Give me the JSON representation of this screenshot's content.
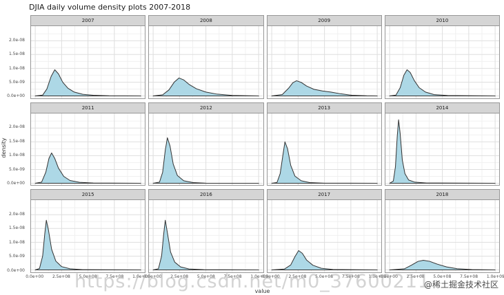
{
  "watermark": {
    "url_text": "https://blog.csdn.net/m0_37600211",
    "badge": "@稀土掘金技术社区"
  },
  "chart_data": {
    "type": "area",
    "title": "DJIA daily volume density plots 2007-2018",
    "xlabel": "value",
    "ylabel": "density",
    "legend": "none",
    "grid": "on",
    "fill_color": "#add8e6",
    "line_color": "#333333",
    "strip_color": "#d5d5d5",
    "x_unit": 100000000.0,
    "y_unit": 1e-09,
    "xlim": [
      -0.4,
      10.4
    ],
    "ylim": [
      0,
      24.5
    ],
    "x_ticks": [
      {
        "value": 0,
        "label": "0.0e+00"
      },
      {
        "value": 2.5,
        "label": "2.5e+08"
      },
      {
        "value": 5,
        "label": "5.0e+08"
      },
      {
        "value": 7.5,
        "label": "7.5e+08"
      },
      {
        "value": 10,
        "label": "1.0e+09"
      }
    ],
    "y_ticks": [
      {
        "value": 0,
        "label": "0.0e+00"
      },
      {
        "value": 5,
        "label": "5.0e-09"
      },
      {
        "value": 10,
        "label": "1.0e-08"
      },
      {
        "value": 15,
        "label": "1.5e-08"
      },
      {
        "value": 20,
        "label": "2.0e-08"
      }
    ],
    "facets": [
      {
        "year": "2007",
        "points": [
          [
            0,
            0
          ],
          [
            0.7,
            0.3
          ],
          [
            1.1,
            2.5
          ],
          [
            1.5,
            7
          ],
          [
            1.85,
            9.5
          ],
          [
            2.2,
            8
          ],
          [
            2.6,
            5
          ],
          [
            3.1,
            2.8
          ],
          [
            3.7,
            1.4
          ],
          [
            4.5,
            0.6
          ],
          [
            5.5,
            0.25
          ],
          [
            7,
            0.05
          ],
          [
            10,
            0
          ]
        ]
      },
      {
        "year": "2008",
        "points": [
          [
            0,
            0
          ],
          [
            0.9,
            0.4
          ],
          [
            1.5,
            2.2
          ],
          [
            2.0,
            5
          ],
          [
            2.45,
            6.5
          ],
          [
            2.9,
            5.8
          ],
          [
            3.4,
            4.2
          ],
          [
            4.1,
            2.6
          ],
          [
            5.0,
            1.4
          ],
          [
            6.0,
            0.7
          ],
          [
            7.5,
            0.2
          ],
          [
            10,
            0
          ]
        ]
      },
      {
        "year": "2009",
        "points": [
          [
            0,
            0
          ],
          [
            1.0,
            0.5
          ],
          [
            1.6,
            2.8
          ],
          [
            2.0,
            4.8
          ],
          [
            2.35,
            5.5
          ],
          [
            2.8,
            4.9
          ],
          [
            3.3,
            3.6
          ],
          [
            4.0,
            2.4
          ],
          [
            4.8,
            1.8
          ],
          [
            5.6,
            1.4
          ],
          [
            6.5,
            0.8
          ],
          [
            7.6,
            0.25
          ],
          [
            9,
            0.05
          ],
          [
            10,
            0
          ]
        ]
      },
      {
        "year": "2010",
        "points": [
          [
            0,
            0
          ],
          [
            0.6,
            0.3
          ],
          [
            1.0,
            3
          ],
          [
            1.35,
            7.5
          ],
          [
            1.65,
            9.5
          ],
          [
            1.95,
            8.5
          ],
          [
            2.35,
            5.5
          ],
          [
            2.8,
            3
          ],
          [
            3.4,
            1.4
          ],
          [
            4.2,
            0.5
          ],
          [
            5.5,
            0.15
          ],
          [
            10,
            0
          ]
        ]
      },
      {
        "year": "2011",
        "points": [
          [
            0,
            0
          ],
          [
            0.6,
            0.4
          ],
          [
            1.0,
            4
          ],
          [
            1.3,
            9
          ],
          [
            1.55,
            11
          ],
          [
            1.85,
            9
          ],
          [
            2.2,
            5.5
          ],
          [
            2.7,
            2.5
          ],
          [
            3.3,
            1.0
          ],
          [
            4.2,
            0.35
          ],
          [
            5.5,
            0.1
          ],
          [
            10,
            0
          ]
        ]
      },
      {
        "year": "2012",
        "points": [
          [
            0,
            0
          ],
          [
            0.6,
            0.4
          ],
          [
            0.9,
            4
          ],
          [
            1.15,
            12
          ],
          [
            1.35,
            16.5
          ],
          [
            1.6,
            13.5
          ],
          [
            1.9,
            7
          ],
          [
            2.3,
            2.8
          ],
          [
            2.9,
            0.9
          ],
          [
            3.8,
            0.25
          ],
          [
            5,
            0.05
          ],
          [
            10,
            0
          ]
        ]
      },
      {
        "year": "2013",
        "points": [
          [
            0,
            0
          ],
          [
            0.5,
            0.3
          ],
          [
            0.8,
            3.5
          ],
          [
            1.05,
            10
          ],
          [
            1.25,
            15
          ],
          [
            1.5,
            12.5
          ],
          [
            1.8,
            6.5
          ],
          [
            2.2,
            2.6
          ],
          [
            2.8,
            0.9
          ],
          [
            3.6,
            0.25
          ],
          [
            5,
            0.05
          ],
          [
            10,
            0
          ]
        ]
      },
      {
        "year": "2014",
        "points": [
          [
            0,
            0
          ],
          [
            0.35,
            0.8
          ],
          [
            0.55,
            6
          ],
          [
            0.72,
            17
          ],
          [
            0.85,
            23
          ],
          [
            1.0,
            18
          ],
          [
            1.2,
            8.5
          ],
          [
            1.45,
            3.5
          ],
          [
            1.8,
            1.2
          ],
          [
            2.4,
            0.4
          ],
          [
            3.5,
            0.1
          ],
          [
            10,
            0
          ]
        ]
      },
      {
        "year": "2015",
        "points": [
          [
            0,
            0
          ],
          [
            0.4,
            0.5
          ],
          [
            0.7,
            5
          ],
          [
            0.9,
            13
          ],
          [
            1.05,
            18
          ],
          [
            1.25,
            14.5
          ],
          [
            1.55,
            7.5
          ],
          [
            1.95,
            3.2
          ],
          [
            2.5,
            1.2
          ],
          [
            3.3,
            0.4
          ],
          [
            4.5,
            0.1
          ],
          [
            10,
            0
          ]
        ]
      },
      {
        "year": "2016",
        "points": [
          [
            0,
            0
          ],
          [
            0.5,
            0.4
          ],
          [
            0.8,
            5
          ],
          [
            1.0,
            13
          ],
          [
            1.15,
            18
          ],
          [
            1.35,
            13.5
          ],
          [
            1.65,
            6.5
          ],
          [
            2.05,
            2.8
          ],
          [
            2.6,
            1.1
          ],
          [
            3.4,
            0.35
          ],
          [
            4.8,
            0.1
          ],
          [
            10,
            0
          ]
        ]
      },
      {
        "year": "2017",
        "points": [
          [
            0,
            0
          ],
          [
            1.2,
            0.3
          ],
          [
            1.8,
            1.8
          ],
          [
            2.2,
            4.8
          ],
          [
            2.55,
            7
          ],
          [
            2.9,
            6
          ],
          [
            3.3,
            3.6
          ],
          [
            3.9,
            1.7
          ],
          [
            4.7,
            0.6
          ],
          [
            5.8,
            0.15
          ],
          [
            10,
            0
          ]
        ]
      },
      {
        "year": "2018",
        "points": [
          [
            0,
            0
          ],
          [
            1.4,
            0.4
          ],
          [
            2.1,
            1.8
          ],
          [
            2.7,
            3.1
          ],
          [
            3.2,
            3.5
          ],
          [
            3.8,
            3.1
          ],
          [
            4.5,
            2.1
          ],
          [
            5.4,
            1.1
          ],
          [
            6.4,
            0.45
          ],
          [
            7.8,
            0.12
          ],
          [
            10,
            0
          ]
        ]
      }
    ]
  }
}
